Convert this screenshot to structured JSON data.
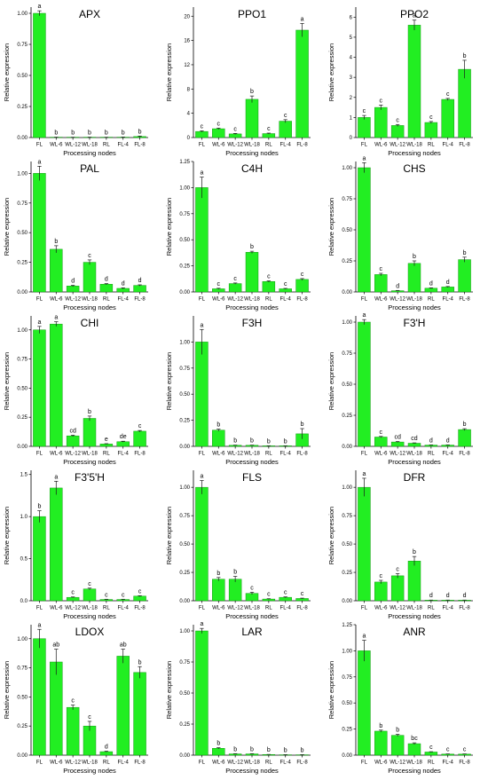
{
  "colors": {
    "bar": "#22ee22",
    "bar_edge": "#159915",
    "axis": "#000000",
    "error": "#1a1a1a"
  },
  "chart_data": [
    {
      "type": "bar",
      "title": "APX",
      "xlabel": "Processing nodes",
      "ylabel": "Relative expression",
      "categories": [
        "FL",
        "WL-6",
        "WL-12",
        "WL-18",
        "RL",
        "FL-4",
        "FL-8"
      ],
      "values": [
        1.0,
        0.002,
        0.001,
        0.002,
        0.001,
        0.003,
        0.008
      ],
      "errors": [
        0.02,
        0.001,
        0.001,
        0.001,
        0.001,
        0.001,
        0.004
      ],
      "letters": [
        "a",
        "b",
        "b",
        "b",
        "b",
        "b",
        "b"
      ],
      "ylim": [
        0,
        1.05
      ],
      "yticks": [
        "0.00",
        "0.25",
        "0.50",
        "0.75",
        "1.00"
      ]
    },
    {
      "type": "bar",
      "title": "PPO1",
      "xlabel": "Processing nodes",
      "ylabel": "Relative expression",
      "categories": [
        "FL",
        "WL-6",
        "WL-12",
        "WL-18",
        "RL",
        "FL-4",
        "FL-8"
      ],
      "values": [
        1.0,
        1.45,
        0.6,
        6.3,
        0.65,
        2.7,
        17.7
      ],
      "errors": [
        0.1,
        0.1,
        0.08,
        0.55,
        0.08,
        0.25,
        1.1
      ],
      "letters": [
        "c",
        "c",
        "c",
        "b",
        "c",
        "c",
        "a"
      ],
      "ylim": [
        0,
        21.5
      ],
      "yticks": [
        "0",
        "4",
        "8",
        "12",
        "16",
        "20"
      ]
    },
    {
      "type": "bar",
      "title": "PPO2",
      "xlabel": "Processing nodes",
      "ylabel": "Relative expression",
      "categories": [
        "FL",
        "WL-6",
        "WL-12",
        "WL-18",
        "RL",
        "FL-4",
        "FL-8"
      ],
      "values": [
        1.0,
        1.5,
        0.6,
        5.6,
        0.75,
        1.9,
        3.4
      ],
      "errors": [
        0.1,
        0.12,
        0.05,
        0.25,
        0.05,
        0.05,
        0.45
      ],
      "letters": [
        "c",
        "c",
        "c",
        "a",
        "c",
        "c",
        "b"
      ],
      "ylim": [
        0,
        6.5
      ],
      "yticks": [
        "0",
        "1",
        "2",
        "3",
        "4",
        "5",
        "6"
      ]
    },
    {
      "type": "bar",
      "title": "PAL",
      "xlabel": "Processing nodes",
      "ylabel": "Relative expression",
      "categories": [
        "FL",
        "WL-6",
        "WL-12",
        "WL-18",
        "RL",
        "FL-4",
        "FL-8"
      ],
      "values": [
        1.0,
        0.36,
        0.05,
        0.25,
        0.065,
        0.03,
        0.055
      ],
      "errors": [
        0.06,
        0.03,
        0.006,
        0.02,
        0.005,
        0.005,
        0.005
      ],
      "letters": [
        "a",
        "b",
        "d",
        "c",
        "d",
        "d",
        "d"
      ],
      "ylim": [
        0,
        1.1
      ],
      "yticks": [
        "0.00",
        "0.25",
        "0.50",
        "0.75",
        "1.00"
      ]
    },
    {
      "type": "bar",
      "title": "C4H",
      "xlabel": "Processing nodes",
      "ylabel": "Relative expression",
      "categories": [
        "FL",
        "WL-6",
        "WL-12",
        "WL-18",
        "RL",
        "FL-4",
        "FL-8"
      ],
      "values": [
        1.0,
        0.03,
        0.08,
        0.38,
        0.1,
        0.03,
        0.12
      ],
      "errors": [
        0.1,
        0.005,
        0.006,
        0.01,
        0.006,
        0.004,
        0.008
      ],
      "letters": [
        "a",
        "c",
        "c",
        "b",
        "c",
        "c",
        "c"
      ],
      "ylim": [
        0,
        1.25
      ],
      "yticks": [
        "0.00",
        "0.25",
        "0.50",
        "0.75",
        "1.00",
        "1.25"
      ]
    },
    {
      "type": "bar",
      "title": "CHS",
      "xlabel": "Processing nodes",
      "ylabel": "Relative expression",
      "categories": [
        "FL",
        "WL-6",
        "WL-12",
        "WL-18",
        "RL",
        "FL-4",
        "FL-8"
      ],
      "values": [
        1.0,
        0.14,
        0.01,
        0.23,
        0.03,
        0.04,
        0.26
      ],
      "errors": [
        0.04,
        0.01,
        0.002,
        0.02,
        0.003,
        0.004,
        0.02
      ],
      "letters": [
        "a",
        "c",
        "d",
        "b",
        "d",
        "d",
        "b"
      ],
      "ylim": [
        0,
        1.05
      ],
      "yticks": [
        "0.00",
        "0.25",
        "0.50",
        "0.75",
        "1.00"
      ]
    },
    {
      "type": "bar",
      "title": "CHI",
      "xlabel": "Processing nodes",
      "ylabel": "Relative expression",
      "categories": [
        "FL",
        "WL-6",
        "WL-12",
        "WL-18",
        "RL",
        "FL-4",
        "FL-8"
      ],
      "values": [
        1.0,
        1.05,
        0.09,
        0.24,
        0.02,
        0.04,
        0.13
      ],
      "errors": [
        0.03,
        0.02,
        0.006,
        0.02,
        0.003,
        0.004,
        0.006
      ],
      "letters": [
        "a",
        "a",
        "cd",
        "b",
        "e",
        "de",
        "c"
      ],
      "ylim": [
        0,
        1.12
      ],
      "yticks": [
        "0.00",
        "0.25",
        "0.50",
        "0.75",
        "1.00"
      ]
    },
    {
      "type": "bar",
      "title": "F3H",
      "xlabel": "Processing nodes",
      "ylabel": "Relative expression",
      "categories": [
        "FL",
        "WL-6",
        "WL-12",
        "WL-18",
        "RL",
        "FL-4",
        "FL-8"
      ],
      "values": [
        1.0,
        0.155,
        0.01,
        0.01,
        0.005,
        0.005,
        0.12
      ],
      "errors": [
        0.12,
        0.01,
        0.002,
        0.002,
        0.001,
        0.001,
        0.05
      ],
      "letters": [
        "a",
        "b",
        "b",
        "b",
        "b",
        "b",
        "b"
      ],
      "ylim": [
        0,
        1.25
      ],
      "yticks": [
        "0.00",
        "0.25",
        "0.50",
        "0.75",
        "1.00"
      ]
    },
    {
      "type": "bar",
      "title": "F3'H",
      "xlabel": "Processing nodes",
      "ylabel": "Relative expression",
      "categories": [
        "FL",
        "WL-6",
        "WL-12",
        "WL-18",
        "RL",
        "FL-4",
        "FL-8"
      ],
      "values": [
        1.0,
        0.075,
        0.035,
        0.025,
        0.01,
        0.01,
        0.135
      ],
      "errors": [
        0.02,
        0.005,
        0.004,
        0.003,
        0.002,
        0.002,
        0.007
      ],
      "letters": [
        "a",
        "c",
        "cd",
        "cd",
        "d",
        "d",
        "b"
      ],
      "ylim": [
        0,
        1.05
      ],
      "yticks": [
        "0.00",
        "0.25",
        "0.50",
        "0.75",
        "1.00"
      ]
    },
    {
      "type": "bar",
      "title": "F3'5'H",
      "xlabel": "Processing nodes",
      "ylabel": "Relative expression",
      "categories": [
        "FL",
        "WL-6",
        "WL-12",
        "WL-18",
        "RL",
        "FL-4",
        "FL-8"
      ],
      "values": [
        1.0,
        1.34,
        0.04,
        0.14,
        0.015,
        0.015,
        0.055
      ],
      "errors": [
        0.07,
        0.08,
        0.005,
        0.01,
        0.003,
        0.003,
        0.005
      ],
      "letters": [
        "b",
        "a",
        "c",
        "c",
        "c",
        "c",
        "c"
      ],
      "ylim": [
        0,
        1.55
      ],
      "yticks": [
        "0.0",
        "0.5",
        "1.0",
        "1.5"
      ]
    },
    {
      "type": "bar",
      "title": "FLS",
      "xlabel": "Processing nodes",
      "ylabel": "Relative expression",
      "categories": [
        "FL",
        "WL-6",
        "WL-12",
        "WL-18",
        "RL",
        "FL-4",
        "FL-8"
      ],
      "values": [
        1.0,
        0.19,
        0.19,
        0.065,
        0.015,
        0.03,
        0.02
      ],
      "errors": [
        0.06,
        0.015,
        0.025,
        0.01,
        0.003,
        0.004,
        0.003
      ],
      "letters": [
        "a",
        "b",
        "b",
        "c",
        "c",
        "c",
        "c"
      ],
      "ylim": [
        0,
        1.15
      ],
      "yticks": [
        "0.00",
        "0.25",
        "0.50",
        "0.75",
        "1.00"
      ]
    },
    {
      "type": "bar",
      "title": "DFR",
      "xlabel": "Processing nodes",
      "ylabel": "Relative expression",
      "categories": [
        "FL",
        "WL-6",
        "WL-12",
        "WL-18",
        "RL",
        "FL-4",
        "FL-8"
      ],
      "values": [
        1.0,
        0.165,
        0.22,
        0.35,
        0.005,
        0.005,
        0.005
      ],
      "errors": [
        0.08,
        0.015,
        0.02,
        0.04,
        0.001,
        0.001,
        0.001
      ],
      "letters": [
        "a",
        "c",
        "c",
        "b",
        "d",
        "d",
        "d"
      ],
      "ylim": [
        0,
        1.15
      ],
      "yticks": [
        "0.00",
        "0.25",
        "0.50",
        "0.75",
        "1.00"
      ]
    },
    {
      "type": "bar",
      "title": "LDOX",
      "xlabel": "Processing nodes",
      "ylabel": "Relative expression",
      "categories": [
        "FL",
        "WL-6",
        "WL-12",
        "WL-18",
        "RL",
        "FL-4",
        "FL-8"
      ],
      "values": [
        1.0,
        0.8,
        0.41,
        0.25,
        0.03,
        0.85,
        0.71
      ],
      "errors": [
        0.08,
        0.11,
        0.02,
        0.04,
        0.004,
        0.06,
        0.05
      ],
      "letters": [
        "a",
        "ab",
        "c",
        "c",
        "d",
        "ab",
        "b"
      ],
      "ylim": [
        0,
        1.12
      ],
      "yticks": [
        "0.00",
        "0.25",
        "0.50",
        "0.75",
        "1.00"
      ]
    },
    {
      "type": "bar",
      "title": "LAR",
      "xlabel": "Processing nodes",
      "ylabel": "Relative expression",
      "categories": [
        "FL",
        "WL-6",
        "WL-12",
        "WL-18",
        "RL",
        "FL-4",
        "FL-8"
      ],
      "values": [
        1.0,
        0.055,
        0.01,
        0.01,
        0.005,
        0.003,
        0.003
      ],
      "errors": [
        0.02,
        0.005,
        0.002,
        0.002,
        0.001,
        0.001,
        0.001
      ],
      "letters": [
        "a",
        "b",
        "b",
        "b",
        "b",
        "b",
        "b"
      ],
      "ylim": [
        0,
        1.05
      ],
      "yticks": [
        "0.00",
        "0.25",
        "0.50",
        "0.75",
        "1.00"
      ]
    },
    {
      "type": "bar",
      "title": "ANR",
      "xlabel": "Processing nodes",
      "ylabel": "Relative expression",
      "categories": [
        "FL",
        "WL-6",
        "WL-12",
        "WL-18",
        "RL",
        "FL-4",
        "FL-8"
      ],
      "values": [
        1.0,
        0.23,
        0.19,
        0.11,
        0.03,
        0.01,
        0.01
      ],
      "errors": [
        0.1,
        0.01,
        0.01,
        0.008,
        0.003,
        0.002,
        0.002
      ],
      "letters": [
        "a",
        "b",
        "b",
        "bc",
        "c",
        "c",
        "c"
      ],
      "ylim": [
        0,
        1.25
      ],
      "yticks": [
        "0.00",
        "0.25",
        "0.50",
        "0.75",
        "1.00",
        "1.25"
      ]
    }
  ]
}
